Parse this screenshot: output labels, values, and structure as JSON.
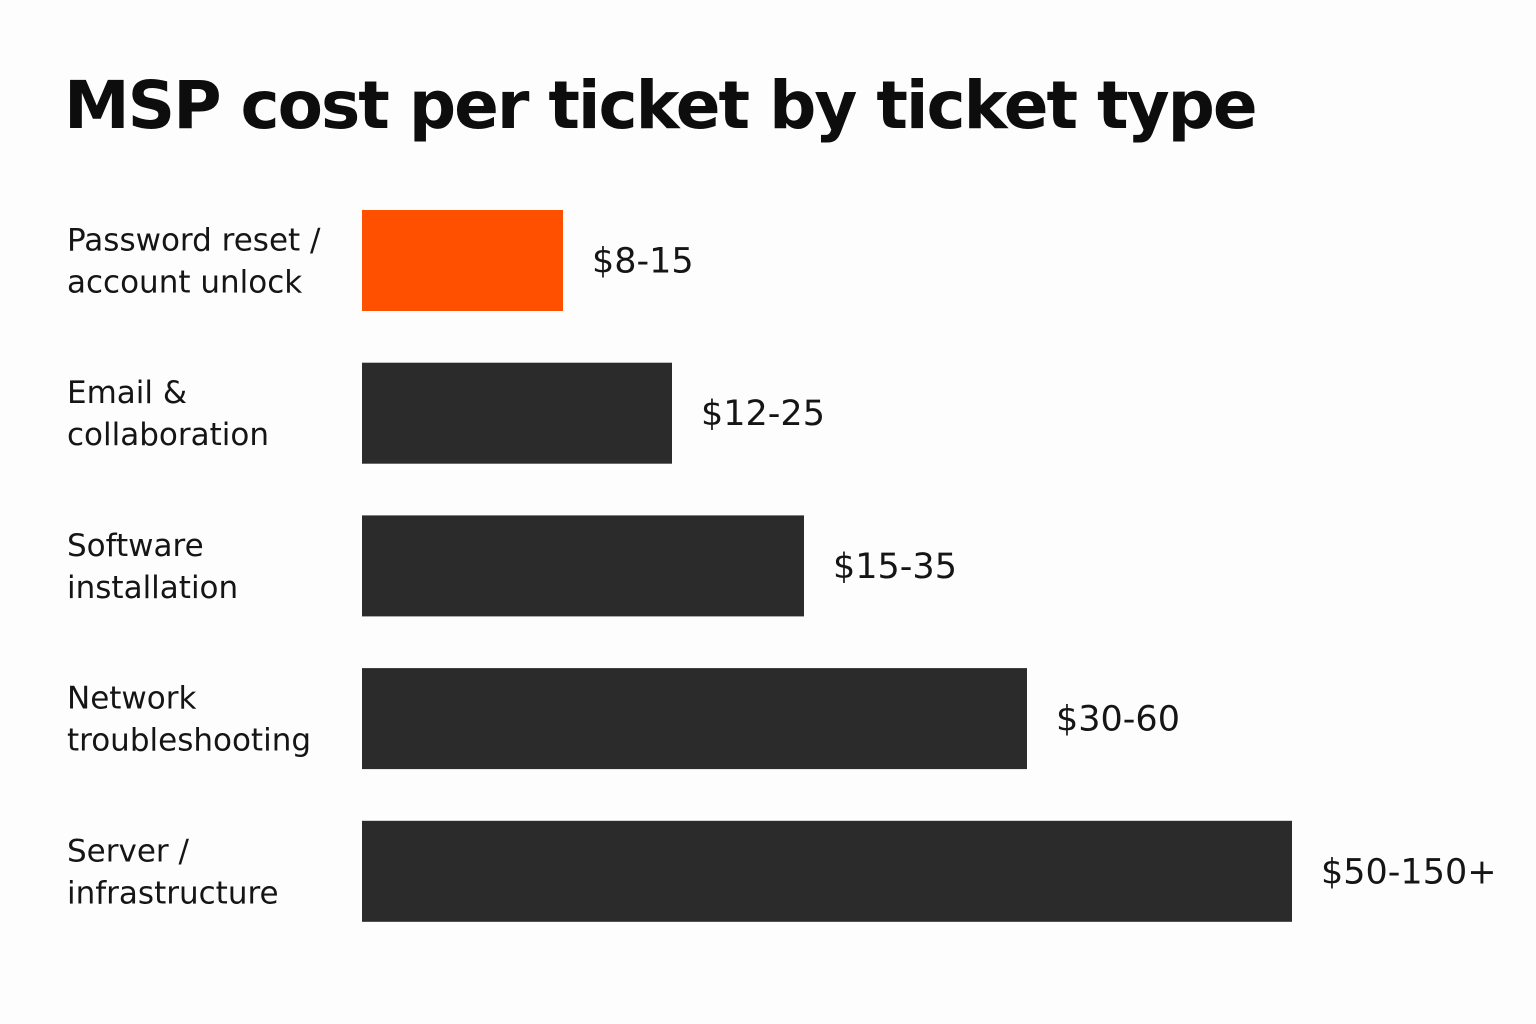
{
  "chart_data": {
    "type": "bar",
    "orientation": "horizontal",
    "title": "MSP cost per ticket by ticket type",
    "xlabel": "",
    "ylabel": "",
    "grid": false,
    "legend": "none",
    "unit": "USD",
    "categories": [
      [
        "Password reset /",
        "account unlock"
      ],
      [
        "Email &",
        "collaboration"
      ],
      [
        "Software",
        "installation"
      ],
      [
        "Network",
        "troubleshooting"
      ],
      [
        "Server /",
        "infrastructure"
      ]
    ],
    "ranges": [
      [
        8,
        15
      ],
      [
        12,
        25
      ],
      [
        15,
        35
      ],
      [
        30,
        60
      ],
      [
        50,
        150
      ]
    ],
    "value_labels": [
      "$8-15",
      "$12-25",
      "$15-35",
      "$30-60",
      "$50-150+"
    ],
    "highlight_index": 0,
    "colors": {
      "highlight": "#ff5000",
      "bar": "#2b2b2b"
    }
  }
}
